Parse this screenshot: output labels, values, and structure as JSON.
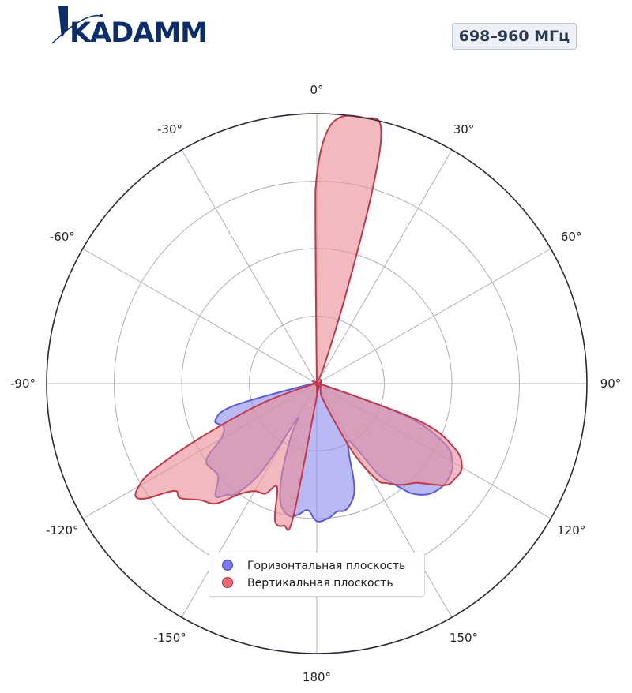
{
  "logo": {
    "text": "KADAMM"
  },
  "band_badge": "698–960 МГц",
  "chart_data": {
    "type": "polar",
    "theta_zero": "top",
    "theta_direction": "clockwise",
    "angle_ticks": [
      {
        "deg": 0,
        "label": "0°"
      },
      {
        "deg": 30,
        "label": "30°"
      },
      {
        "deg": 60,
        "label": "60°"
      },
      {
        "deg": 90,
        "label": "90°"
      },
      {
        "deg": 120,
        "label": "120°"
      },
      {
        "deg": 150,
        "label": "150°"
      },
      {
        "deg": 180,
        "label": "180°"
      },
      {
        "deg": -150,
        "label": "-150°"
      },
      {
        "deg": -120,
        "label": "-120°"
      },
      {
        "deg": -90,
        "label": "-90°"
      },
      {
        "deg": -60,
        "label": "-60°"
      },
      {
        "deg": -30,
        "label": "-30°"
      }
    ],
    "radial_range": [
      0,
      1
    ],
    "radial_gridlines": [
      0.25,
      0.5,
      0.75,
      1.0
    ],
    "grid": true,
    "legend_position": "bottom-center",
    "series": [
      {
        "name": "Горизонтальная плоскость",
        "color": "#5b5bd6",
        "fill": "#8e8ef0",
        "points": [
          [
            0,
            0
          ],
          [
            60,
            0
          ],
          [
            100,
            0.02
          ],
          [
            110,
            0.35
          ],
          [
            115,
            0.52
          ],
          [
            120,
            0.58
          ],
          [
            125,
            0.6
          ],
          [
            130,
            0.6
          ],
          [
            135,
            0.58
          ],
          [
            139,
            0.54
          ],
          [
            141,
            0.5
          ],
          [
            143,
            0.46
          ],
          [
            146,
            0.4
          ],
          [
            150,
            0.25
          ],
          [
            155,
            0.28
          ],
          [
            159,
            0.38
          ],
          [
            162,
            0.44
          ],
          [
            167,
            0.48
          ],
          [
            171,
            0.48
          ],
          [
            175,
            0.5
          ],
          [
            180,
            0.51
          ],
          [
            184,
            0.47
          ],
          [
            188,
            0.49
          ],
          [
            192,
            0.5
          ],
          [
            197,
            0.46
          ],
          [
            201,
            0.36
          ],
          [
            206,
            0.22
          ],
          [
            209,
            0.15
          ],
          [
            212,
            0.38
          ],
          [
            216,
            0.5
          ],
          [
            219,
            0.53
          ],
          [
            222,
            0.56
          ],
          [
            227,
            0.5
          ],
          [
            235,
            0.5
          ],
          [
            240,
            0.41
          ],
          [
            245,
            0.38
          ],
          [
            250,
            0.4
          ],
          [
            255,
            0.32
          ],
          [
            260,
            0.05
          ],
          [
            280,
            0
          ],
          [
            360,
            0
          ]
        ]
      },
      {
        "name": "Вертикальная плоскость",
        "color": "#c0394a",
        "fill": "#ea8f98",
        "points": [
          [
            -0.5,
            0.58
          ],
          [
            0,
            0.77
          ],
          [
            2,
            0.92
          ],
          [
            5,
            0.99
          ],
          [
            10,
            1.0
          ],
          [
            14,
            0.98
          ],
          [
            16,
            0.75
          ],
          [
            18,
            0.35
          ],
          [
            22,
            0.08
          ],
          [
            28,
            0
          ],
          [
            90,
            0
          ],
          [
            100,
            0.02
          ],
          [
            110,
            0.4
          ],
          [
            115,
            0.56
          ],
          [
            120,
            0.62
          ],
          [
            125,
            0.62
          ],
          [
            128,
            0.61
          ],
          [
            131,
            0.57
          ],
          [
            135,
            0.52
          ],
          [
            140,
            0.49
          ],
          [
            145,
            0.45
          ],
          [
            148,
            0.42
          ],
          [
            152,
            0.3
          ],
          [
            155,
            0.15
          ],
          [
            160,
            0.05
          ],
          [
            162,
            0.02
          ],
          [
            190,
            0.5
          ],
          [
            193,
            0.54
          ],
          [
            197,
            0.53
          ],
          [
            201,
            0.41
          ],
          [
            205,
            0.45
          ],
          [
            210,
            0.46
          ],
          [
            215,
            0.5
          ],
          [
            220,
            0.58
          ],
          [
            225,
            0.61
          ],
          [
            230,
            0.66
          ],
          [
            233,
            0.66
          ],
          [
            236,
            0.76
          ],
          [
            238,
            0.79
          ],
          [
            240,
            0.76
          ],
          [
            242,
            0.69
          ],
          [
            245,
            0.48
          ],
          [
            250,
            0.22
          ],
          [
            258,
            0.02
          ],
          [
            270,
            0
          ],
          [
            360,
            0
          ]
        ]
      }
    ]
  },
  "legend": {
    "items": [
      {
        "label": "Горизонтальная плоскость",
        "fill": "#7a79ec",
        "stroke": "#4545c0"
      },
      {
        "label": "Вертикальная плоскость",
        "fill": "#e66b74",
        "stroke": "#b5303c"
      }
    ]
  }
}
